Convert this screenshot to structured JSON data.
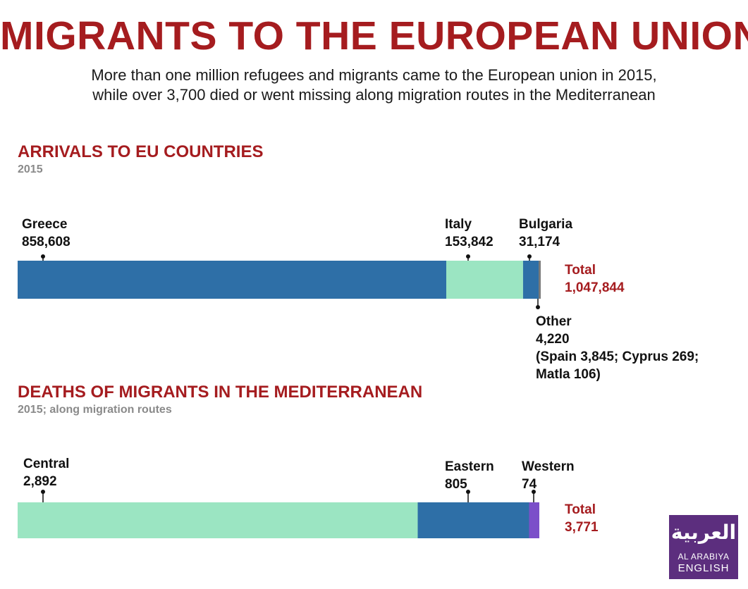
{
  "header": {
    "title": "MIGRANTS TO THE EUROPEAN UNION",
    "subtitle_line1": "More than one million refugees and migrants came to the European union in 2015,",
    "subtitle_line2": "while over 3,700 died or went missing along migration routes in the Mediterranean"
  },
  "colors": {
    "accent": "#a51c1f",
    "blue": "#2e6fa7",
    "mint": "#9be5c2",
    "purple": "#7b4fc9",
    "gray": "#7a7a7a",
    "logo": "#5c2e7e"
  },
  "logo": {
    "arabic": "العربية",
    "line1": "AL ARABIYA",
    "line2": "ENGLISH"
  },
  "chart_data": [
    {
      "type": "bar",
      "orientation": "horizontal-stacked",
      "title": "ARRIVALS TO EU COUNTRIES",
      "subtitle": "2015",
      "total_label": "Total",
      "total_value": "1,047,844",
      "total": 1047844,
      "segments": [
        {
          "name": "Greece",
          "value": 858608,
          "value_label": "858,608",
          "color": "#2e6fa7"
        },
        {
          "name": "Italy",
          "value": 153842,
          "value_label": "153,842",
          "color": "#9be5c2"
        },
        {
          "name": "Bulgaria",
          "value": 31174,
          "value_label": "31,174",
          "color": "#2e6fa7"
        },
        {
          "name": "Other",
          "value": 4220,
          "value_label": "4,220",
          "detail_line1": "(Spain 3,845; Cyprus 269;",
          "detail_line2": "Matla 106)",
          "color": "#7a7a7a"
        }
      ]
    },
    {
      "type": "bar",
      "orientation": "horizontal-stacked",
      "title": "DEATHS OF MIGRANTS IN THE MEDITERRANEAN",
      "subtitle": "2015; along migration routes",
      "total_label": "Total",
      "total_value": "3,771",
      "total": 3771,
      "segments": [
        {
          "name": "Central",
          "value": 2892,
          "value_label": "2,892",
          "color": "#9be5c2"
        },
        {
          "name": "Eastern",
          "value": 805,
          "value_label": "805",
          "color": "#2e6fa7"
        },
        {
          "name": "Western",
          "value": 74,
          "value_label": "74",
          "color": "#7b4fc9"
        }
      ]
    }
  ]
}
